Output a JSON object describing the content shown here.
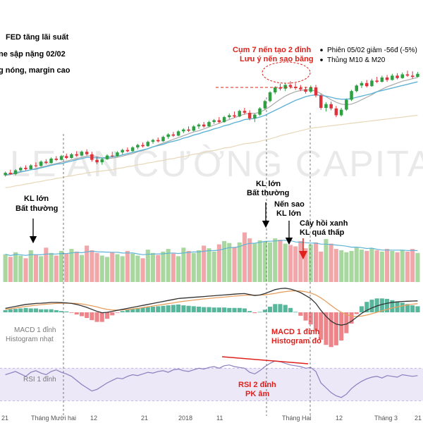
{
  "header_notes": [
    "FED tăng lãi suất",
    "ne sập nặng 02/02",
    "g nóng, margin cao"
  ],
  "watermark": "LE AN CƯỜNG CAPITAL",
  "bullets": [
    "Phiên 05/02 giảm -56đ (-5%)",
    "Thủng M10 & M20"
  ],
  "top_annotation": {
    "line1": "Cụm 7 nến tạo 2 đỉnh",
    "line2": "Lưu ý nến sao băng"
  },
  "volume_annotations": [
    {
      "line1": "KL lớn",
      "line2": "Bất thường"
    },
    {
      "line1": "KL lớn",
      "line2": "Bất thường"
    },
    {
      "line1": "Nến sao",
      "line2": "KL lớn"
    },
    {
      "line1": "Cây hồi xanh",
      "line2": "KL quá thấp"
    }
  ],
  "macd_annotations": [
    {
      "line1": "MACD 1 đỉnh",
      "line2": "Histogram nhạt"
    },
    {
      "line1": "MACD 1 đỉnh",
      "line2": "Histogram đỏ"
    }
  ],
  "rsi_annotations": [
    {
      "line1": "RSI 1 đỉnh",
      "line2": ""
    },
    {
      "line1": "RSI 2 đỉnh",
      "line2": "PK âm"
    }
  ],
  "x_ticks": [
    "21",
    "Tháng Mười hai",
    "12",
    "21",
    "2018",
    "11",
    "Tháng Hai",
    "12",
    "Tháng 3",
    "21"
  ],
  "colors": {
    "up": "#2ea043",
    "down": "#e0323a",
    "vol_up": "#a8d8a0",
    "vol_down": "#f1a7aa",
    "ma_blue": "#5fb3d6",
    "ma_grey": "#a9a9a9",
    "ma_tan": "#e8d7b8",
    "macd_line": "#333333",
    "signal_line": "#e8a060",
    "rsi_line": "#8a7fc0",
    "rsi_band": "#ece8f7",
    "annot_red": "#e0201b"
  },
  "chart_data": [
    {
      "type": "candlestick",
      "title": "",
      "xlabel": "",
      "ylabel": "",
      "note": "price panel, values in relative price units (chart prints no price scale)",
      "candles": [
        [
          10,
          10.6,
          9.8,
          10.4
        ],
        [
          10.4,
          10.9,
          10.1,
          10.2
        ],
        [
          10.2,
          11,
          10,
          10.8
        ],
        [
          10.8,
          11.4,
          10.6,
          11.2
        ],
        [
          11.2,
          11.6,
          10.8,
          11
        ],
        [
          11,
          11.8,
          10.9,
          11.6
        ],
        [
          11.6,
          12.1,
          11.3,
          11.5
        ],
        [
          11.5,
          12.4,
          11.4,
          12.2
        ],
        [
          12.2,
          12.6,
          11.8,
          12
        ],
        [
          12,
          12.9,
          11.9,
          12.7
        ],
        [
          12.7,
          13.1,
          12.3,
          12.5
        ],
        [
          12.5,
          13.3,
          12.4,
          13.1
        ],
        [
          13.1,
          13.5,
          12.6,
          12.8
        ],
        [
          12.8,
          13.6,
          12.7,
          13.4
        ],
        [
          13.4,
          13.9,
          13,
          13.2
        ],
        [
          13.2,
          14,
          13.1,
          13.8
        ],
        [
          13.8,
          14.2,
          13.2,
          13.4
        ],
        [
          13.4,
          13.8,
          12.2,
          12.5
        ],
        [
          12.5,
          13,
          11.8,
          12.1
        ],
        [
          12.1,
          12.8,
          11.7,
          12.6
        ],
        [
          12.6,
          13.4,
          12.5,
          13.2
        ],
        [
          13.2,
          13.8,
          12.9,
          13.1
        ],
        [
          13.1,
          13.9,
          13,
          13.7
        ],
        [
          13.7,
          14.3,
          13.4,
          14.1
        ],
        [
          14.1,
          14.5,
          13.7,
          13.9
        ],
        [
          13.9,
          14.7,
          13.8,
          14.5
        ],
        [
          14.5,
          15.1,
          14.2,
          14.9
        ],
        [
          14.9,
          15.3,
          14.5,
          14.7
        ],
        [
          14.7,
          15.6,
          14.6,
          15.4
        ],
        [
          15.4,
          15.9,
          15.1,
          15.7
        ],
        [
          15.7,
          16.1,
          15.3,
          15.5
        ],
        [
          15.5,
          16.4,
          15.4,
          16.2
        ],
        [
          16.2,
          16.8,
          15.9,
          16.6
        ],
        [
          16.6,
          17,
          16.2,
          16.4
        ],
        [
          16.4,
          17.3,
          16.3,
          17.1
        ],
        [
          17.1,
          17.6,
          16.8,
          17.4
        ],
        [
          17.4,
          17.9,
          17,
          17.2
        ],
        [
          17.2,
          18.1,
          17.1,
          17.9
        ],
        [
          17.9,
          18.4,
          17.5,
          18.2
        ],
        [
          18.2,
          18.6,
          17.7,
          17.9
        ],
        [
          17.9,
          18.8,
          17.8,
          18.6
        ],
        [
          18.6,
          19.1,
          18.3,
          18.9
        ],
        [
          18.9,
          19.4,
          18.4,
          18.6
        ],
        [
          18.6,
          19.6,
          18.5,
          19.4
        ],
        [
          19.4,
          20,
          19.1,
          19.7
        ],
        [
          19.7,
          20.3,
          19.3,
          19.5
        ],
        [
          19.5,
          20.6,
          19.4,
          20.4
        ],
        [
          20.4,
          20.9,
          19.8,
          20.1
        ],
        [
          20.1,
          20.5,
          18.9,
          19.2
        ],
        [
          19.2,
          20,
          18.6,
          19.8
        ],
        [
          19.8,
          21,
          19.6,
          20.8
        ],
        [
          20.8,
          22.2,
          20.6,
          22
        ],
        [
          22,
          23.6,
          21.8,
          23.4
        ],
        [
          23.4,
          24.4,
          23.1,
          24.2
        ],
        [
          24.2,
          24.8,
          23.7,
          24
        ],
        [
          24,
          24.9,
          23.6,
          24.6
        ],
        [
          24.6,
          25.2,
          24,
          24.3
        ],
        [
          24.3,
          24.9,
          23.8,
          24.1
        ],
        [
          24.1,
          24.6,
          23.6,
          23.9
        ],
        [
          23.9,
          24.3,
          23.2,
          23.5
        ],
        [
          23.5,
          24.5,
          23.3,
          24.2
        ],
        [
          24.2,
          24.6,
          22.6,
          22.9
        ],
        [
          22.9,
          23.1,
          20.6,
          20.9
        ],
        [
          20.9,
          21.8,
          20.3,
          21.5
        ],
        [
          21.5,
          21.9,
          20.5,
          20.8
        ],
        [
          20.8,
          21.2,
          19.4,
          19.7
        ],
        [
          19.7,
          20.9,
          19.5,
          20.6
        ],
        [
          20.6,
          22.4,
          20.4,
          22.2
        ],
        [
          22.2,
          23.8,
          22,
          23.6
        ],
        [
          23.6,
          24.7,
          23.4,
          24.5
        ],
        [
          24.5,
          25.2,
          24.1,
          24.9
        ],
        [
          24.9,
          25.4,
          24.2,
          24.4
        ],
        [
          24.4,
          25.6,
          24.3,
          25.3
        ],
        [
          25.3,
          25.9,
          24.9,
          25.1
        ],
        [
          25.1,
          26.1,
          25,
          25.8
        ],
        [
          25.8,
          26.2,
          25.1,
          25.4
        ],
        [
          25.4,
          26.4,
          25.3,
          26.1
        ],
        [
          26.1,
          26.5,
          25.5,
          25.7
        ],
        [
          25.7,
          26.6,
          25.6,
          26.3
        ],
        [
          26.3,
          26.9,
          25.9,
          26.1
        ],
        [
          26.1,
          26.8,
          25.6,
          25.9
        ],
        [
          25.9,
          26.7,
          25.8,
          26.4
        ]
      ],
      "volume": [
        42,
        38,
        45,
        40,
        36,
        48,
        41,
        39,
        52,
        44,
        40,
        47,
        43,
        50,
        46,
        41,
        55,
        48,
        44,
        40,
        38,
        45,
        42,
        39,
        47,
        43,
        40,
        36,
        49,
        44,
        41,
        46,
        50,
        43,
        39,
        52,
        47,
        44,
        48,
        55,
        51,
        46,
        57,
        62,
        59,
        53,
        60,
        75,
        66,
        58,
        63,
        61,
        60,
        66,
        64,
        58,
        56,
        54,
        62,
        51,
        57,
        60,
        46,
        65,
        58,
        50,
        48,
        45,
        47,
        52,
        49,
        47,
        51,
        48,
        46,
        50,
        47,
        45,
        48,
        46,
        50,
        44
      ],
      "ma_blue": [
        10.1,
        10.2,
        10.4,
        10.6,
        10.7,
        10.9,
        11,
        11.2,
        11.4,
        11.6,
        11.8,
        11.9,
        12.1,
        12.3,
        12.5,
        12.7,
        12.9,
        12.9,
        12.8,
        12.8,
        12.9,
        13,
        13.1,
        13.3,
        13.5,
        13.7,
        13.9,
        14.1,
        14.3,
        14.6,
        14.8,
        15,
        15.3,
        15.5,
        15.7,
        16,
        16.2,
        16.5,
        16.7,
        17,
        17.2,
        17.5,
        17.7,
        18,
        18.2,
        18.5,
        18.7,
        19,
        19.1,
        19.2,
        19.4,
        19.7,
        20.1,
        20.5,
        20.9,
        21.3,
        21.7,
        22.1,
        22.4,
        22.7,
        22.9,
        23,
        22.9,
        22.8,
        22.6,
        22.4,
        22.3,
        22.3,
        22.4,
        22.6,
        22.8,
        23,
        23.2,
        23.5,
        23.7,
        23.9,
        24.1,
        24.3,
        24.5,
        24.7,
        24.9,
        25.1
      ],
      "ma_grey": [
        10,
        10.1,
        10.3,
        10.5,
        10.7,
        10.9,
        11.1,
        11.3,
        11.5,
        11.7,
        11.9,
        12.1,
        12.3,
        12.5,
        12.7,
        12.9,
        13.1,
        13.2,
        13,
        12.8,
        12.7,
        12.8,
        12.9,
        13.1,
        13.3,
        13.5,
        13.8,
        14,
        14.3,
        14.6,
        14.9,
        15.2,
        15.5,
        15.8,
        16.1,
        16.4,
        16.7,
        17,
        17.2,
        17.5,
        17.8,
        18.1,
        18.4,
        18.7,
        19,
        19.3,
        19.6,
        19.9,
        20,
        20,
        20.2,
        20.6,
        21.1,
        21.7,
        22.3,
        22.8,
        23.2,
        23.5,
        23.7,
        23.8,
        23.8,
        23.6,
        23.2,
        22.7,
        22.2,
        21.8,
        21.5,
        21.4,
        21.5,
        21.8,
        22.2,
        22.6,
        23,
        23.5,
        23.9,
        24.3,
        24.6,
        24.9,
        25.2,
        25.4,
        25.6,
        25.8
      ],
      "ma_tan": [
        8,
        8.1,
        8.3,
        8.4,
        8.6,
        8.7,
        8.9,
        9,
        9.2,
        9.3,
        9.5,
        9.6,
        9.8,
        9.9,
        10.1,
        10.2,
        10.4,
        10.5,
        10.6,
        10.7,
        10.8,
        10.9,
        11.1,
        11.2,
        11.4,
        11.5,
        11.7,
        11.8,
        12,
        12.1,
        12.3,
        12.4,
        12.6,
        12.7,
        12.9,
        13,
        13.2,
        13.4,
        13.5,
        13.7,
        13.9,
        14,
        14.2,
        14.4,
        14.5,
        14.7,
        14.9,
        15.1,
        15.2,
        15.3,
        15.5,
        15.7,
        15.9,
        16.1,
        16.4,
        16.6,
        16.8,
        17,
        17.2,
        17.4,
        17.6,
        17.7,
        17.8,
        17.9,
        18,
        18.1,
        18.2,
        18.3,
        18.4,
        18.5,
        18.6,
        18.7,
        18.8,
        18.9,
        19,
        19.1,
        19.2,
        19.3,
        19.4,
        19.5,
        19.6,
        19.7
      ]
    },
    {
      "type": "line",
      "title": "",
      "xlabel": "",
      "ylabel": "",
      "note": "MACD panel (relative units, no printed scale)",
      "series": [
        {
          "values": [
            0.2,
            0.25,
            0.3,
            0.35,
            0.4,
            0.42,
            0.45,
            0.46,
            0.48,
            0.5,
            0.5,
            0.49,
            0.48,
            0.45,
            0.4,
            0.33,
            0.25,
            0.15,
            0.05,
            -0.02,
            0.0,
            0.05,
            0.1,
            0.15,
            0.2,
            0.25,
            0.3,
            0.35,
            0.4,
            0.45,
            0.5,
            0.55,
            0.6,
            0.65,
            0.7,
            0.72,
            0.74,
            0.76,
            0.78,
            0.8,
            0.82,
            0.84,
            0.86,
            0.88,
            0.9,
            0.92,
            0.94,
            0.95,
            0.9,
            0.85,
            0.88,
            0.95,
            1.05,
            1.15,
            1.2,
            1.22,
            1.18,
            1.1,
            1.0,
            0.85,
            0.7,
            0.45,
            0.1,
            -0.2,
            -0.45,
            -0.6,
            -0.65,
            -0.6,
            -0.45,
            -0.25,
            -0.05,
            0.1,
            0.22,
            0.32,
            0.4,
            0.46,
            0.5,
            0.53,
            0.55,
            0.56,
            0.57,
            0.58
          ]
        },
        {
          "values": [
            0.15,
            0.18,
            0.22,
            0.26,
            0.3,
            0.33,
            0.36,
            0.39,
            0.41,
            0.43,
            0.45,
            0.46,
            0.46,
            0.46,
            0.45,
            0.42,
            0.38,
            0.33,
            0.27,
            0.2,
            0.15,
            0.12,
            0.11,
            0.12,
            0.14,
            0.17,
            0.2,
            0.24,
            0.28,
            0.32,
            0.36,
            0.4,
            0.44,
            0.48,
            0.52,
            0.56,
            0.59,
            0.62,
            0.65,
            0.68,
            0.7,
            0.73,
            0.75,
            0.77,
            0.8,
            0.82,
            0.84,
            0.86,
            0.87,
            0.87,
            0.87,
            0.89,
            0.92,
            0.96,
            1.01,
            1.05,
            1.08,
            1.09,
            1.08,
            1.04,
            0.98,
            0.88,
            0.73,
            0.55,
            0.35,
            0.16,
            0.0,
            -0.12,
            -0.19,
            -0.21,
            -0.19,
            -0.14,
            -0.07,
            0.0,
            0.08,
            0.15,
            0.22,
            0.28,
            0.33,
            0.37,
            0.41,
            0.44
          ]
        }
      ]
    },
    {
      "type": "line",
      "title": "",
      "xlabel": "",
      "ylabel": "",
      "note": "RSI panel, band 30–70",
      "band": [
        30,
        70
      ],
      "series": [
        {
          "values": [
            62,
            64,
            66,
            63,
            60,
            65,
            67,
            64,
            62,
            66,
            68,
            65,
            63,
            60,
            55,
            50,
            46,
            42,
            44,
            48,
            52,
            55,
            58,
            57,
            60,
            62,
            61,
            63,
            65,
            64,
            66,
            67,
            65,
            68,
            69,
            67,
            66,
            68,
            70,
            69,
            71,
            72,
            70,
            73,
            74,
            72,
            71,
            70,
            65,
            63,
            67,
            72,
            76,
            79,
            78,
            76,
            74,
            73,
            72,
            70,
            71,
            66,
            52,
            46,
            40,
            36,
            34,
            38,
            45,
            50,
            54,
            57,
            59,
            60,
            58,
            61,
            60,
            59,
            62,
            61,
            60,
            61
          ]
        }
      ]
    }
  ]
}
